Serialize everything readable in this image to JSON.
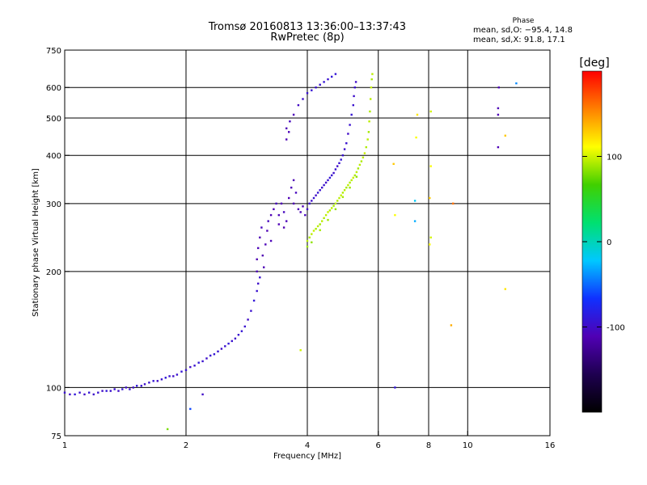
{
  "header": {
    "title": "Tromsø 20160813 13:36:00–13:37:43",
    "subtitle": "RwPretec (8p)"
  },
  "phase_box": {
    "title": "Phase",
    "line_o": "mean, sd,O: −95.4, 14.8",
    "line_x": "mean, sd,X:  91.8, 17.1"
  },
  "colorbar": {
    "label": "[deg]",
    "ticks": [
      {
        "value": 100,
        "label": "100"
      },
      {
        "value": 0,
        "label": "0"
      },
      {
        "value": -100,
        "label": "-100"
      }
    ],
    "range": [
      -200,
      200
    ],
    "colors": [
      "#000000",
      "#1e0050",
      "#5000b4",
      "#1030ff",
      "#00c8ff",
      "#00e070",
      "#40d000",
      "#ffff00",
      "#ff8000",
      "#ff0000"
    ]
  },
  "chart_data": {
    "type": "scatter",
    "title": "Tromsø 20160813 13:36:00–13:37:43",
    "subtitle": "RwPretec (8p)",
    "xlabel": "Frequency [MHz]",
    "ylabel": "Stationary phase Virtual Height [km]",
    "x_scale": "log",
    "y_scale": "log",
    "xlim": [
      1,
      16
    ],
    "ylim": [
      75,
      750
    ],
    "x_ticks": [
      {
        "value": 1,
        "label": "1"
      },
      {
        "value": 2,
        "label": "2"
      },
      {
        "value": 4,
        "label": "4"
      },
      {
        "value": 6,
        "label": "6"
      },
      {
        "value": 8,
        "label": "8"
      },
      {
        "value": 10,
        "label": "10"
      },
      {
        "value": 16,
        "label": "16"
      }
    ],
    "y_ticks": [
      {
        "value": 75,
        "label": "75"
      },
      {
        "value": 100,
        "label": "100"
      },
      {
        "value": 200,
        "label": "200"
      },
      {
        "value": 300,
        "label": "300"
      },
      {
        "value": 400,
        "label": "400"
      },
      {
        "value": 500,
        "label": "500"
      },
      {
        "value": 600,
        "label": "600"
      },
      {
        "value": 750,
        "label": "750"
      }
    ],
    "grid_x": [
      2,
      4,
      6,
      8,
      10
    ],
    "grid_y": [
      100,
      200,
      300,
      400,
      500,
      600
    ],
    "color_variable": "phase [deg]",
    "series": [
      {
        "mode": "O",
        "points": [
          [
            1.0,
            97,
            -95
          ],
          [
            1.03,
            96,
            -100
          ],
          [
            1.06,
            96,
            -90
          ],
          [
            1.09,
            97,
            -95
          ],
          [
            1.12,
            96,
            -100
          ],
          [
            1.15,
            97,
            -92
          ],
          [
            1.18,
            96,
            -98
          ],
          [
            1.21,
            97,
            -95
          ],
          [
            1.24,
            98,
            -100
          ],
          [
            1.27,
            98,
            -90
          ],
          [
            1.3,
            98,
            -96
          ],
          [
            1.33,
            99,
            -95
          ],
          [
            1.36,
            98,
            -100
          ],
          [
            1.39,
            99,
            -92
          ],
          [
            1.42,
            100,
            -98
          ],
          [
            1.45,
            99,
            -95
          ],
          [
            1.48,
            100,
            -100
          ],
          [
            1.51,
            101,
            -90
          ],
          [
            1.55,
            101,
            -95
          ],
          [
            1.58,
            102,
            -98
          ],
          [
            1.62,
            103,
            -95
          ],
          [
            1.66,
            104,
            -92
          ],
          [
            1.7,
            104,
            -100
          ],
          [
            1.74,
            105,
            -95
          ],
          [
            1.78,
            106,
            -90
          ],
          [
            1.82,
            107,
            -95
          ],
          [
            1.86,
            107,
            -100
          ],
          [
            1.9,
            108,
            -95
          ],
          [
            1.95,
            110,
            -92
          ],
          [
            2.0,
            111,
            -95
          ],
          [
            2.05,
            113,
            -100
          ],
          [
            2.1,
            114,
            -95
          ],
          [
            2.15,
            116,
            -90
          ],
          [
            2.2,
            117,
            -95
          ],
          [
            2.25,
            119,
            -98
          ],
          [
            2.3,
            121,
            -95
          ],
          [
            2.35,
            122,
            -92
          ],
          [
            2.4,
            124,
            -95
          ],
          [
            2.45,
            126,
            -100
          ],
          [
            2.5,
            128,
            -95
          ],
          [
            2.55,
            130,
            -90
          ],
          [
            2.6,
            132,
            -95
          ],
          [
            2.65,
            134,
            -98
          ],
          [
            2.7,
            137,
            -95
          ],
          [
            2.75,
            140,
            -92
          ],
          [
            2.8,
            144,
            -95
          ],
          [
            2.85,
            150,
            -100
          ],
          [
            2.9,
            158,
            -95
          ],
          [
            2.95,
            168,
            -90
          ],
          [
            3.0,
            178,
            -95
          ],
          [
            3.02,
            186,
            -98
          ],
          [
            3.05,
            193,
            -95
          ],
          [
            3.0,
            200,
            -110
          ],
          [
            3.0,
            215,
            -112
          ],
          [
            3.02,
            230,
            -108
          ],
          [
            3.05,
            245,
            -110
          ],
          [
            3.08,
            260,
            -105
          ],
          [
            3.1,
            220,
            -112
          ],
          [
            3.12,
            205,
            -110
          ],
          [
            3.15,
            235,
            -108
          ],
          [
            3.18,
            255,
            -110
          ],
          [
            3.2,
            270,
            -105
          ],
          [
            3.25,
            280,
            -110
          ],
          [
            3.25,
            240,
            -108
          ],
          [
            3.3,
            290,
            -110
          ],
          [
            3.35,
            300,
            -105
          ],
          [
            3.4,
            265,
            -110
          ],
          [
            3.4,
            280,
            -108
          ],
          [
            3.45,
            300,
            -110
          ],
          [
            3.5,
            285,
            -105
          ],
          [
            3.5,
            260,
            -112
          ],
          [
            3.55,
            270,
            -108
          ],
          [
            3.6,
            310,
            -110
          ],
          [
            3.65,
            330,
            -108
          ],
          [
            3.7,
            345,
            -110
          ],
          [
            3.7,
            300,
            -112
          ],
          [
            3.75,
            320,
            -105
          ],
          [
            3.8,
            290,
            -110
          ],
          [
            3.85,
            285,
            -108
          ],
          [
            3.9,
            295,
            -110
          ],
          [
            3.95,
            280,
            -105
          ],
          [
            4.0,
            290,
            -100
          ],
          [
            4.05,
            300,
            -95
          ],
          [
            4.1,
            305,
            -98
          ],
          [
            4.15,
            310,
            -95
          ],
          [
            4.2,
            315,
            -100
          ],
          [
            4.25,
            320,
            -92
          ],
          [
            4.3,
            325,
            -95
          ],
          [
            4.35,
            330,
            -98
          ],
          [
            4.4,
            335,
            -95
          ],
          [
            4.45,
            340,
            -100
          ],
          [
            4.5,
            345,
            -95
          ],
          [
            4.55,
            350,
            -92
          ],
          [
            4.6,
            355,
            -95
          ],
          [
            4.65,
            360,
            -98
          ],
          [
            4.7,
            368,
            -95
          ],
          [
            4.75,
            375,
            -100
          ],
          [
            4.8,
            382,
            -95
          ],
          [
            4.85,
            390,
            -92
          ],
          [
            4.9,
            400,
            -95
          ],
          [
            4.95,
            415,
            -98
          ],
          [
            5.0,
            430,
            -95
          ],
          [
            5.05,
            455,
            -100
          ],
          [
            5.1,
            480,
            -95
          ],
          [
            5.15,
            510,
            -92
          ],
          [
            5.2,
            540,
            -95
          ],
          [
            5.22,
            570,
            -98
          ],
          [
            5.25,
            600,
            -95
          ],
          [
            5.28,
            620,
            -100
          ],
          [
            3.55,
            470,
            -110
          ],
          [
            3.62,
            490,
            -105
          ],
          [
            3.7,
            510,
            -108
          ],
          [
            3.8,
            540,
            -102
          ],
          [
            3.9,
            560,
            -98
          ],
          [
            4.0,
            580,
            -95
          ],
          [
            4.1,
            590,
            -92
          ],
          [
            4.2,
            600,
            -95
          ],
          [
            4.3,
            610,
            -95
          ],
          [
            4.4,
            620,
            -92
          ],
          [
            4.5,
            630,
            -95
          ],
          [
            4.6,
            640,
            -90
          ],
          [
            4.7,
            650,
            -92
          ],
          [
            3.55,
            440,
            -110
          ],
          [
            3.6,
            460,
            -108
          ]
        ]
      },
      {
        "mode": "X",
        "points": [
          [
            4.0,
            240,
            95
          ],
          [
            4.05,
            245,
            92
          ],
          [
            4.1,
            250,
            95
          ],
          [
            4.15,
            255,
            98
          ],
          [
            4.2,
            258,
            92
          ],
          [
            4.25,
            262,
            95
          ],
          [
            4.3,
            265,
            90
          ],
          [
            4.35,
            270,
            95
          ],
          [
            4.4,
            275,
            92
          ],
          [
            4.45,
            280,
            95
          ],
          [
            4.5,
            285,
            98
          ],
          [
            4.55,
            288,
            92
          ],
          [
            4.6,
            292,
            95
          ],
          [
            4.65,
            296,
            90
          ],
          [
            4.7,
            300,
            95
          ],
          [
            4.75,
            305,
            92
          ],
          [
            4.8,
            310,
            95
          ],
          [
            4.85,
            315,
            98
          ],
          [
            4.9,
            320,
            92
          ],
          [
            4.95,
            325,
            95
          ],
          [
            5.0,
            330,
            90
          ],
          [
            5.05,
            335,
            95
          ],
          [
            5.1,
            340,
            92
          ],
          [
            5.15,
            345,
            95
          ],
          [
            5.2,
            350,
            98
          ],
          [
            5.25,
            355,
            92
          ],
          [
            5.3,
            362,
            95
          ],
          [
            5.35,
            370,
            90
          ],
          [
            5.4,
            378,
            95
          ],
          [
            5.45,
            386,
            92
          ],
          [
            5.5,
            395,
            95
          ],
          [
            5.55,
            405,
            98
          ],
          [
            5.6,
            420,
            92
          ],
          [
            5.65,
            440,
            95
          ],
          [
            5.68,
            460,
            90
          ],
          [
            5.7,
            490,
            95
          ],
          [
            5.72,
            520,
            92
          ],
          [
            5.74,
            560,
            95
          ],
          [
            5.76,
            600,
            98
          ],
          [
            5.78,
            630,
            92
          ],
          [
            5.8,
            650,
            95
          ],
          [
            4.0,
            232,
            88
          ],
          [
            4.1,
            238,
            85
          ],
          [
            4.3,
            256,
            90
          ],
          [
            4.5,
            272,
            88
          ],
          [
            4.7,
            290,
            85
          ],
          [
            4.9,
            312,
            90
          ],
          [
            5.1,
            330,
            88
          ],
          [
            5.3,
            352,
            85
          ]
        ]
      },
      {
        "mode": "scattered",
        "points": [
          [
            1.8,
            78,
            80
          ],
          [
            2.05,
            88,
            -60
          ],
          [
            2.2,
            96,
            -100
          ],
          [
            3.85,
            125,
            100
          ],
          [
            6.6,
            100,
            -90
          ],
          [
            6.6,
            280,
            110
          ],
          [
            6.55,
            380,
            130
          ],
          [
            7.4,
            305,
            -20
          ],
          [
            7.4,
            270,
            -30
          ],
          [
            7.45,
            445,
            110
          ],
          [
            7.5,
            510,
            120
          ],
          [
            8.05,
            310,
            130
          ],
          [
            8.05,
            235,
            110
          ],
          [
            8.1,
            245,
            100
          ],
          [
            8.1,
            375,
            110
          ],
          [
            8.1,
            520,
            100
          ],
          [
            9.1,
            145,
            140
          ],
          [
            9.2,
            300,
            160
          ],
          [
            11.9,
            420,
            -110
          ],
          [
            11.9,
            510,
            -110
          ],
          [
            11.9,
            530,
            -110
          ],
          [
            11.95,
            600,
            -110
          ],
          [
            12.4,
            450,
            130
          ],
          [
            12.4,
            180,
            120
          ],
          [
            13.2,
            615,
            -40
          ]
        ]
      }
    ]
  }
}
